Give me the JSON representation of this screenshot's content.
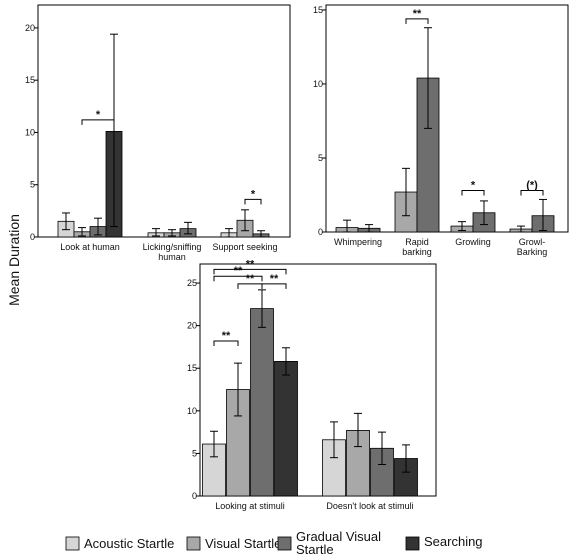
{
  "ylabel": "Mean Duration",
  "colors": {
    "acoustic_startle": "#d6d6d6",
    "visual_startle": "#a8a8a8",
    "gradual_visual_startle": "#6e6e6e",
    "searching": "#333333"
  },
  "legend": [
    {
      "key": "acoustic_startle",
      "label": "Acoustic Startle"
    },
    {
      "key": "visual_startle",
      "label": "Visual Startle"
    },
    {
      "key": "gradual_visual_startle",
      "label": "Gradual Visual Startle"
    },
    {
      "key": "searching",
      "label": "Searching"
    }
  ],
  "chart_data": [
    {
      "type": "bar",
      "categories": [
        "Look at human",
        "Licking/sniffing human",
        "Support seeking"
      ],
      "ylim": [
        0,
        22
      ],
      "yticks": [
        0,
        5,
        10,
        15,
        20
      ],
      "series": [
        {
          "name": "Acoustic Startle",
          "key": "acoustic_startle",
          "values": [
            1.5,
            0.4,
            0.4
          ],
          "err_low": [
            0.7,
            0.1,
            0.0
          ],
          "err_high": [
            2.3,
            0.8,
            0.8
          ]
        },
        {
          "name": "Visual Startle",
          "key": "visual_startle",
          "values": [
            0.5,
            0.4,
            1.6
          ],
          "err_low": [
            0.1,
            0.1,
            0.6
          ],
          "err_high": [
            0.9,
            0.7,
            2.6
          ]
        },
        {
          "name": "Gradual Visual Startle",
          "key": "gradual_visual_startle",
          "values": [
            1.0,
            0.8,
            0.3
          ],
          "err_low": [
            0.2,
            0.3,
            0.0
          ],
          "err_high": [
            1.8,
            1.4,
            0.6
          ]
        },
        {
          "name": "Searching",
          "key": "searching",
          "values": [
            10.1,
            0,
            0
          ],
          "err_low": [
            1.0,
            0,
            0
          ],
          "err_high": [
            19.4,
            0,
            0
          ]
        }
      ],
      "annotations": [
        {
          "label": "*",
          "category": 0,
          "from": 1,
          "to": 3,
          "level": 11.2
        },
        {
          "label": "*",
          "category": 1,
          "from": 2,
          "to": 3,
          "level": 3.6
        },
        {
          "label": "*",
          "category": 2,
          "from": 1,
          "to": 2,
          "level": 3.6
        }
      ]
    },
    {
      "type": "bar",
      "categories": [
        "Whimpering",
        "Rapid barking",
        "Growling",
        "Growl-Barking"
      ],
      "ylim": [
        0,
        15.2
      ],
      "yticks": [
        0,
        5,
        10,
        15
      ],
      "series": [
        {
          "name": "Acoustic Startle",
          "key": "acoustic_startle",
          "values": [
            0,
            0,
            0,
            0
          ],
          "err_low": [
            0,
            0,
            0,
            0
          ],
          "err_high": [
            0,
            0,
            0,
            0
          ]
        },
        {
          "name": "Visual Startle",
          "key": "visual_startle",
          "values": [
            0.3,
            2.7,
            0.4,
            0.2
          ],
          "err_low": [
            0.0,
            1.1,
            0.1,
            0.0
          ],
          "err_high": [
            0.8,
            4.3,
            0.7,
            0.4
          ]
        },
        {
          "name": "Gradual Visual Startle",
          "key": "gradual_visual_startle",
          "values": [
            0.25,
            10.4,
            1.3,
            1.1
          ],
          "err_low": [
            0.0,
            7.0,
            0.5,
            0.1
          ],
          "err_high": [
            0.5,
            13.8,
            2.1,
            2.2
          ]
        },
        {
          "name": "Searching",
          "key": "searching",
          "values": [
            0,
            0,
            0,
            0
          ],
          "err_low": [
            0,
            0,
            0,
            0
          ],
          "err_high": [
            0,
            0,
            0,
            0
          ]
        }
      ],
      "annotations": [
        {
          "label": "**",
          "category": 1,
          "from": 1,
          "to": 2,
          "level": 14.4
        },
        {
          "label": "*",
          "category": 2,
          "from": 1,
          "to": 2,
          "level": 2.8
        },
        {
          "label": "(*)",
          "category": 3,
          "from": 1,
          "to": 2,
          "level": 2.8
        }
      ]
    },
    {
      "type": "bar",
      "categories": [
        "Looking at stimuli",
        "Doesn't look at stimuli"
      ],
      "ylim": [
        0,
        27
      ],
      "yticks": [
        0,
        5,
        10,
        15,
        20,
        25
      ],
      "series": [
        {
          "name": "Acoustic Startle",
          "key": "acoustic_startle",
          "values": [
            6.1,
            6.6
          ],
          "err_low": [
            4.6,
            4.5
          ],
          "err_high": [
            7.6,
            8.7
          ]
        },
        {
          "name": "Visual Startle",
          "key": "visual_startle",
          "values": [
            12.5,
            7.7
          ],
          "err_low": [
            9.4,
            5.8
          ],
          "err_high": [
            15.6,
            9.7
          ]
        },
        {
          "name": "Gradual Visual Startle",
          "key": "gradual_visual_startle",
          "values": [
            22.0,
            5.6
          ],
          "err_low": [
            19.8,
            3.7
          ],
          "err_high": [
            24.2,
            7.5
          ]
        },
        {
          "name": "Searching",
          "key": "searching",
          "values": [
            15.8,
            4.4
          ],
          "err_low": [
            14.2,
            2.8
          ],
          "err_high": [
            17.4,
            6.0
          ]
        }
      ],
      "annotations": [
        {
          "label": "**",
          "category": 0,
          "from": 0,
          "to": 1,
          "level": 18.2
        },
        {
          "label": "**",
          "category": 0,
          "from": 2,
          "to": 3,
          "level": 24.9
        },
        {
          "label": "**",
          "category": 0,
          "from": 1,
          "to": 2,
          "level": 24.9
        },
        {
          "label": "**",
          "category": 0,
          "from": 0,
          "to": 2,
          "level": 25.8
        },
        {
          "label": "**",
          "category": 0,
          "from": 0,
          "to": 3,
          "level": 26.6
        }
      ]
    }
  ]
}
